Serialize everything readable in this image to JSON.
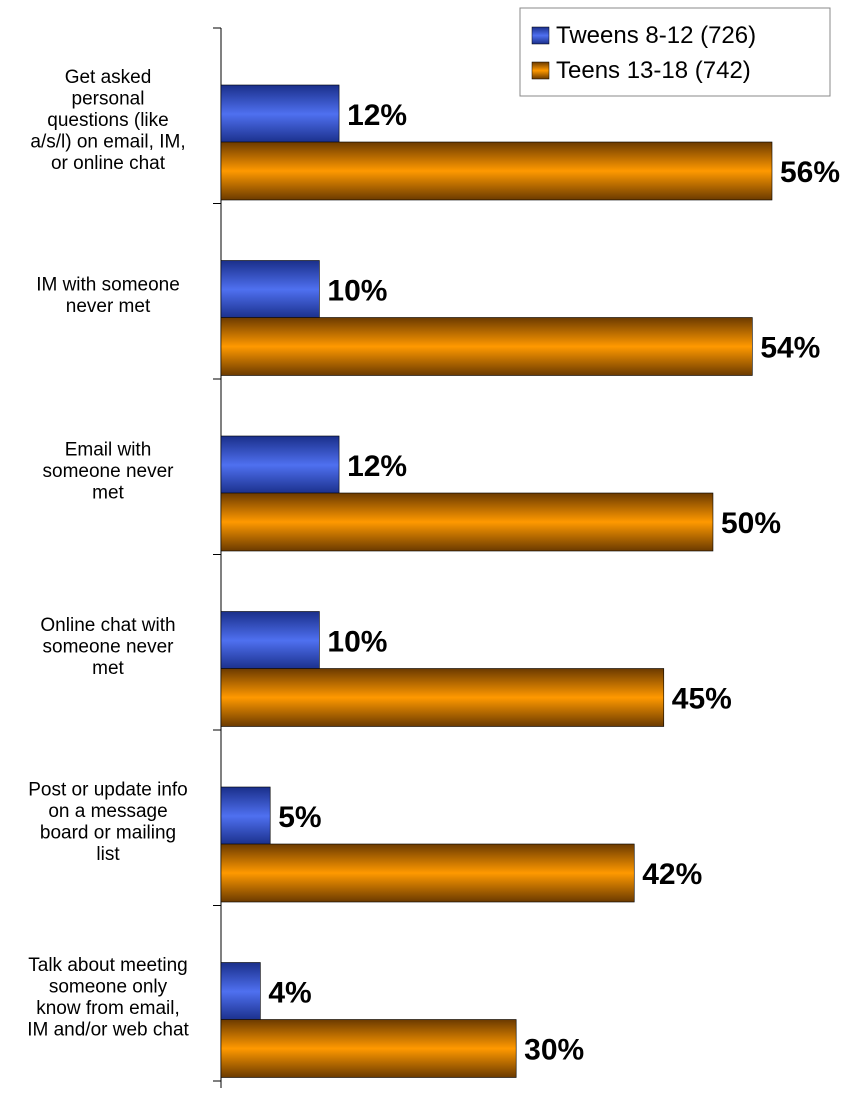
{
  "chart_data": {
    "type": "bar",
    "orientation": "horizontal",
    "categories": [
      "Get asked personal questions (like a/s/l) on email, IM, or online chat",
      "IM with someone never met",
      "Email with someone never met",
      "Online chat with someone never met",
      "Post or update info on a message board or mailing list",
      "Talk about meeting someone only know from email, IM and/or web chat"
    ],
    "category_label_lines": [
      [
        "Get asked",
        "personal",
        "questions (like",
        "a/s/l) on email, IM,",
        "or online chat"
      ],
      [
        "IM with someone",
        "never met"
      ],
      [
        "Email with",
        "someone never",
        "met"
      ],
      [
        "Online chat with",
        "someone never",
        "met"
      ],
      [
        "Post or update info",
        "on a message",
        "board or mailing",
        "list"
      ],
      [
        "Talk about meeting",
        "someone only",
        "know from email,",
        "IM and/or web chat"
      ]
    ],
    "series": [
      {
        "name": "Tweens 8-12 (726)",
        "values": [
          12,
          10,
          12,
          10,
          5,
          4
        ],
        "labels": [
          "12%",
          "10%",
          "12%",
          "10%",
          "5%",
          "4%"
        ]
      },
      {
        "name": "Teens 13-18 (742)",
        "values": [
          56,
          54,
          50,
          45,
          42,
          30
        ],
        "labels": [
          "56%",
          "54%",
          "50%",
          "45%",
          "42%",
          "30%"
        ]
      }
    ],
    "xlim": [
      0,
      60
    ],
    "grid": false,
    "legend_position": "top-right",
    "colors": {
      "tweens": [
        "#1a2f8a",
        "#4f70f0",
        "#1a2f8a"
      ],
      "teens": [
        "#6b3a00",
        "#ff9900",
        "#6b3a00"
      ]
    }
  }
}
